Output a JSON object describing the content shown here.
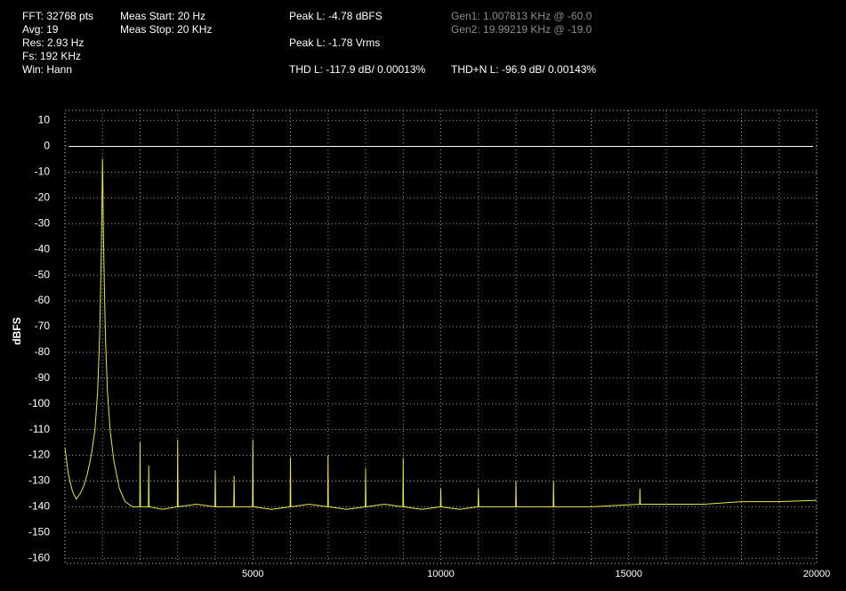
{
  "readouts": [
    {
      "text": "FFT: 32768 pts",
      "gray": false
    },
    {
      "text": "Avg: 19",
      "gray": false
    },
    {
      "text": "Res: 2.93 Hz",
      "gray": false
    },
    {
      "text": "Fs: 192 KHz",
      "gray": false
    },
    {
      "text": "Win: Hann",
      "gray": false
    },
    {
      "text": "Meas Start: 20 Hz",
      "gray": false
    },
    {
      "text": "Meas Stop: 20 KHz",
      "gray": false
    },
    {
      "text": "Peak L: -4.78 dBFS",
      "gray": false
    },
    {
      "text": "Peak L: -1.78 Vrms",
      "gray": false
    },
    {
      "text": "THD L: -117.9 dB/ 0.00013%",
      "gray": false
    },
    {
      "text": "Gen1: 1.007813 KHz @ -60.0",
      "gray": true
    },
    {
      "text": "Gen2: 19.99219 KHz @ -19.0",
      "gray": true
    },
    {
      "text": "THD+N L: -96.9 dB/ 0.00143%",
      "gray": false
    }
  ],
  "chart_data": {
    "type": "line",
    "ylabel": "dBFS",
    "color": "#e6e645",
    "x": [
      0,
      50,
      100,
      200,
      300,
      400,
      500,
      600,
      700,
      800,
      870,
      920,
      950,
      975,
      990,
      1000,
      1010,
      1025,
      1050,
      1080,
      1130,
      1200,
      1300,
      1450,
      1600,
      1800,
      1990,
      2000,
      2010,
      2220,
      2230,
      2240,
      2600,
      2990,
      3000,
      3010,
      3500,
      3990,
      4000,
      4010,
      4490,
      4500,
      4510,
      4990,
      5000,
      5010,
      5500,
      5990,
      6000,
      6010,
      6500,
      6990,
      7000,
      7010,
      7500,
      7990,
      8000,
      8010,
      8500,
      8990,
      9000,
      9010,
      9500,
      9990,
      10000,
      10010,
      10500,
      10990,
      11000,
      11010,
      11500,
      11990,
      12000,
      12010,
      12500,
      12990,
      13000,
      13010,
      14000,
      15290,
      15300,
      15310,
      16000,
      17000,
      18000,
      19000,
      20000
    ],
    "values": [
      -117,
      -123,
      -128,
      -134,
      -137,
      -135,
      -132,
      -127,
      -120,
      -110,
      -95,
      -75,
      -55,
      -35,
      -15,
      -4.8,
      -15,
      -35,
      -55,
      -75,
      -95,
      -110,
      -122,
      -133,
      -138,
      -140,
      -140,
      -115,
      -140,
      -140,
      -124,
      -140,
      -141,
      -140,
      -114,
      -140,
      -139,
      -140,
      -126,
      -140,
      -140,
      -128,
      -140,
      -140,
      -114,
      -140,
      -141,
      -140,
      -121,
      -140,
      -139,
      -140,
      -120,
      -140,
      -141,
      -140,
      -125,
      -140,
      -139,
      -140,
      -121,
      -140,
      -141,
      -140,
      -133,
      -140,
      -141,
      -140,
      -133,
      -140,
      -140,
      -140,
      -130,
      -140,
      -140,
      -140,
      -130,
      -140,
      -140,
      -139,
      -133,
      -139,
      -139,
      -139,
      -138,
      -138,
      -137.5
    ],
    "xlim": [
      0,
      20000
    ],
    "ylim": [
      -162,
      14
    ],
    "xticks": [
      5000,
      10000,
      15000,
      20000
    ],
    "xgrid": [
      1000,
      2000,
      3000,
      4000,
      5000,
      6000,
      7000,
      8000,
      9000,
      10000,
      11000,
      12000,
      13000,
      14000,
      15000,
      16000,
      17000,
      18000,
      19000
    ],
    "yticks": [
      10,
      0,
      -10,
      -20,
      -30,
      -40,
      -50,
      -60,
      -70,
      -80,
      -90,
      -100,
      -110,
      -120,
      -130,
      -140,
      -150,
      -160
    ],
    "reference_line": 0,
    "grid": true
  }
}
